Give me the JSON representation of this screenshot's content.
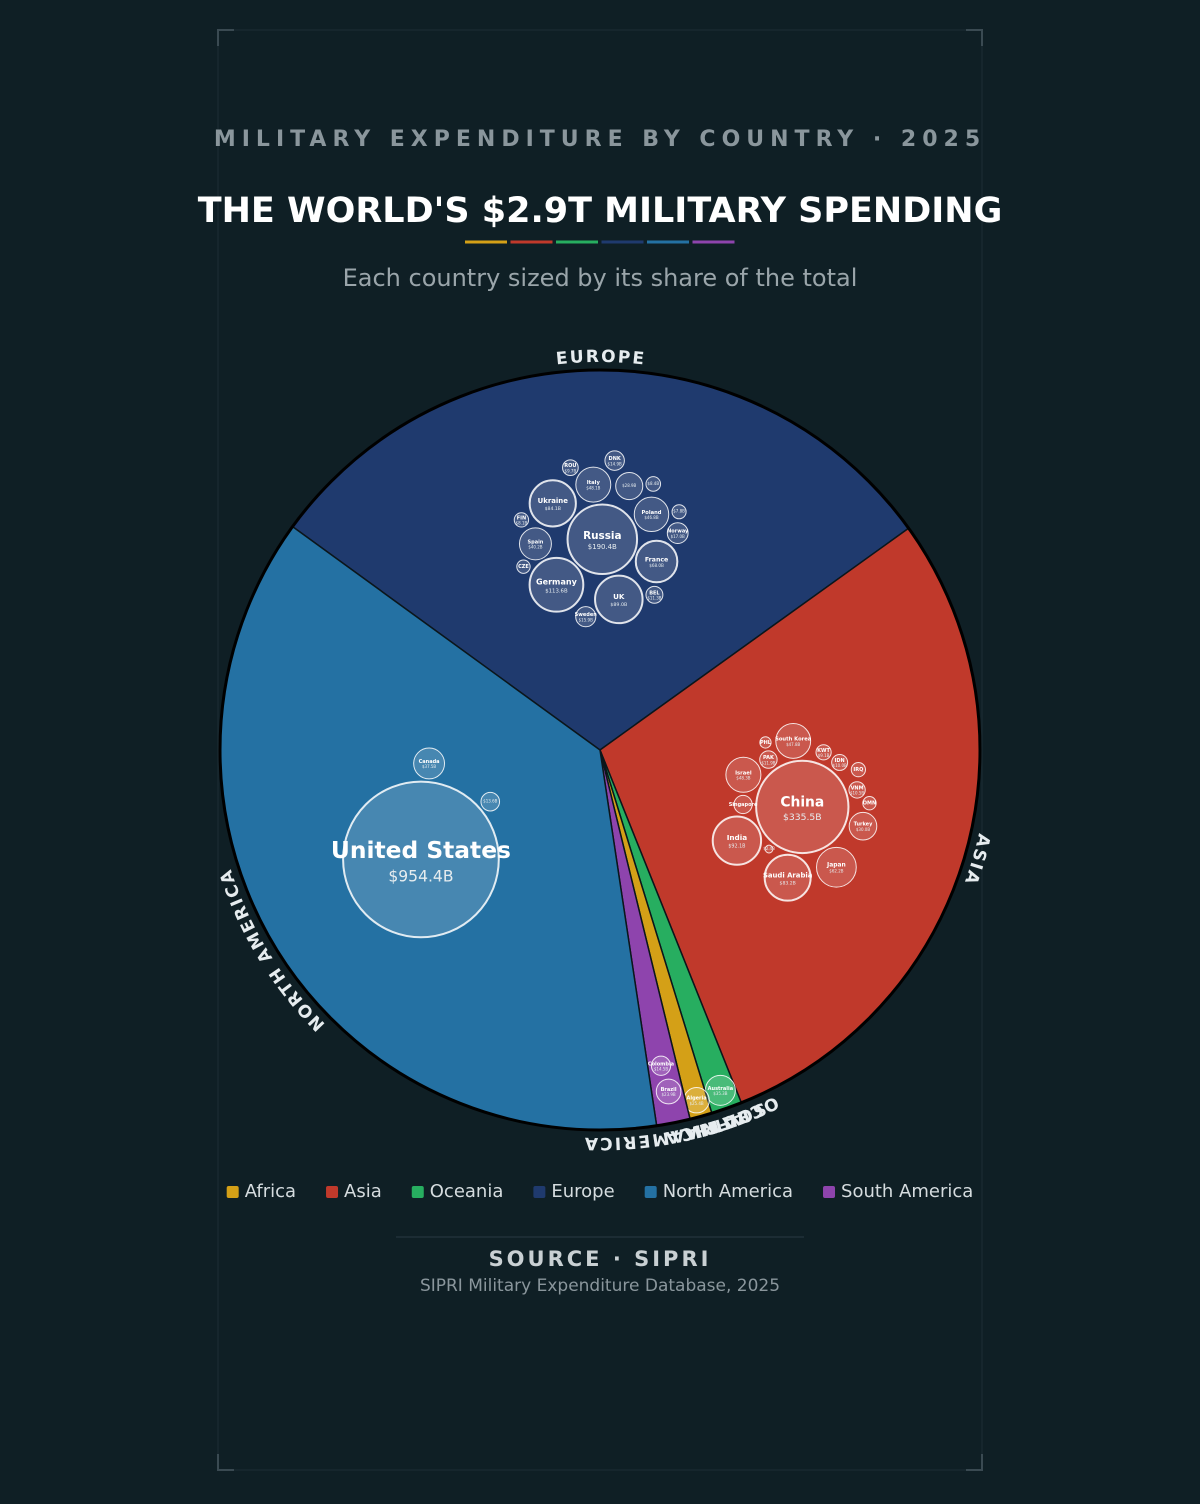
{
  "header": {
    "kicker": "MILITARY EXPENDITURE BY COUNTRY · 2025",
    "title": "THE WORLD'S $2.9T MILITARY SPENDING",
    "subtitle": "Each country sized by its share of the total"
  },
  "chart_data": {
    "type": "voronoi-treemap",
    "regions": [
      {
        "name": "Africa",
        "label": "AFRICA",
        "color": "#d4a017",
        "countries": [
          {
            "name": "Algeria",
            "value": 25.4,
            "value_label": "$25.4B"
          }
        ]
      },
      {
        "name": "Asia",
        "label": "ASIA",
        "color": "#c0392b",
        "countries": [
          {
            "name": "China",
            "value": 335.5,
            "value_label": "$335.5B"
          },
          {
            "name": "India",
            "value": 92.1,
            "value_label": "$92.1B"
          },
          {
            "name": "Saudi Arabia",
            "value": 83.2,
            "value_label": "$83.2B"
          },
          {
            "name": "Japan",
            "value": 62.2,
            "value_label": "$62.2B"
          },
          {
            "name": "Israel",
            "value": 48.3,
            "value_label": "$48.3B"
          },
          {
            "name": "South Korea",
            "value": 47.8,
            "value_label": "$47.8B"
          },
          {
            "name": "Turkey",
            "value": 30.0,
            "value_label": "$30.0B"
          },
          {
            "name": "Singapore",
            "value": 13.0
          },
          {
            "name": "PAK",
            "value": 11.9,
            "value_label": "$11.9B"
          },
          {
            "name": "VNM",
            "value": 10.5,
            "value_label": "$10.5B"
          },
          {
            "name": "IDN",
            "value": 10.0,
            "value_label": "$10.0B"
          },
          {
            "name": "KWT",
            "value": 9.1,
            "value_label": "$9.1B"
          },
          {
            "name": "IRQ",
            "value": 8.0
          },
          {
            "name": "OMN",
            "value": 7.0
          },
          {
            "name": "PHL",
            "value": 5.0
          },
          {
            "name": null,
            "value": 2.4,
            "value_label": "$2.4B"
          }
        ]
      },
      {
        "name": "Oceania",
        "label": "OCEANIA",
        "color": "#27ae60",
        "countries": [
          {
            "name": "Australia",
            "value": 35.3,
            "value_label": "$35.3B"
          }
        ]
      },
      {
        "name": "Europe",
        "label": "EUROPE",
        "color": "#1f3a6e",
        "countries": [
          {
            "name": "Russia",
            "value": 190.4,
            "value_label": "$190.4B"
          },
          {
            "name": "Germany",
            "value": 113.6,
            "value_label": "$113.6B"
          },
          {
            "name": "UK",
            "value": 89.0,
            "value_label": "$89.0B"
          },
          {
            "name": "Ukraine",
            "value": 84.1,
            "value_label": "$84.1B"
          },
          {
            "name": "France",
            "value": 68.0,
            "value_label": "$68.0B"
          },
          {
            "name": "Italy",
            "value": 48.1,
            "value_label": "$48.1B"
          },
          {
            "name": "Poland",
            "value": 46.8,
            "value_label": "$46.8B"
          },
          {
            "name": "Spain",
            "value": 40.2,
            "value_label": "$40.2B"
          },
          {
            "name": null,
            "value": 28.9,
            "value_label": "$28.9B"
          },
          {
            "name": "Norway",
            "value": 17.0,
            "value_label": "$17.0B"
          },
          {
            "name": "Sweden",
            "value": 15.9,
            "value_label": "$15.9B"
          },
          {
            "name": "DNK",
            "value": 14.9,
            "value_label": "$14.9B"
          },
          {
            "name": "BEL",
            "value": 11.3,
            "value_label": "$11.3B"
          },
          {
            "name": "ROU",
            "value": 9.7,
            "value_label": "$9.7B"
          },
          {
            "name": null,
            "value": 8.4,
            "value_label": "$8.4B"
          },
          {
            "name": "FIN",
            "value": 8.1,
            "value_label": "$8.1B"
          },
          {
            "name": null,
            "value": 7.8,
            "value_label": "$7.8B"
          },
          {
            "name": "CZE",
            "value": 7.0
          }
        ]
      },
      {
        "name": "North America",
        "label": "NORTH AMERICA",
        "color": "#2471a3",
        "countries": [
          {
            "name": "United States",
            "value": 954.4,
            "value_label": "$954.4B"
          },
          {
            "name": "Canada",
            "value": 37.5,
            "value_label": "$37.5B"
          },
          {
            "name": null,
            "value": 13.6,
            "value_label": "$13.6B"
          }
        ]
      },
      {
        "name": "South America",
        "label": "SOUTH AMERICA",
        "color": "#8e44ad",
        "countries": [
          {
            "name": "Brazil",
            "value": 23.9,
            "value_label": "$23.9B"
          },
          {
            "name": "Colombia",
            "value": 14.5,
            "value_label": "$14.5B"
          }
        ]
      }
    ]
  },
  "source": {
    "title": "SOURCE · SIPRI",
    "text": "SIPRI Military Expenditure Database, 2025"
  }
}
